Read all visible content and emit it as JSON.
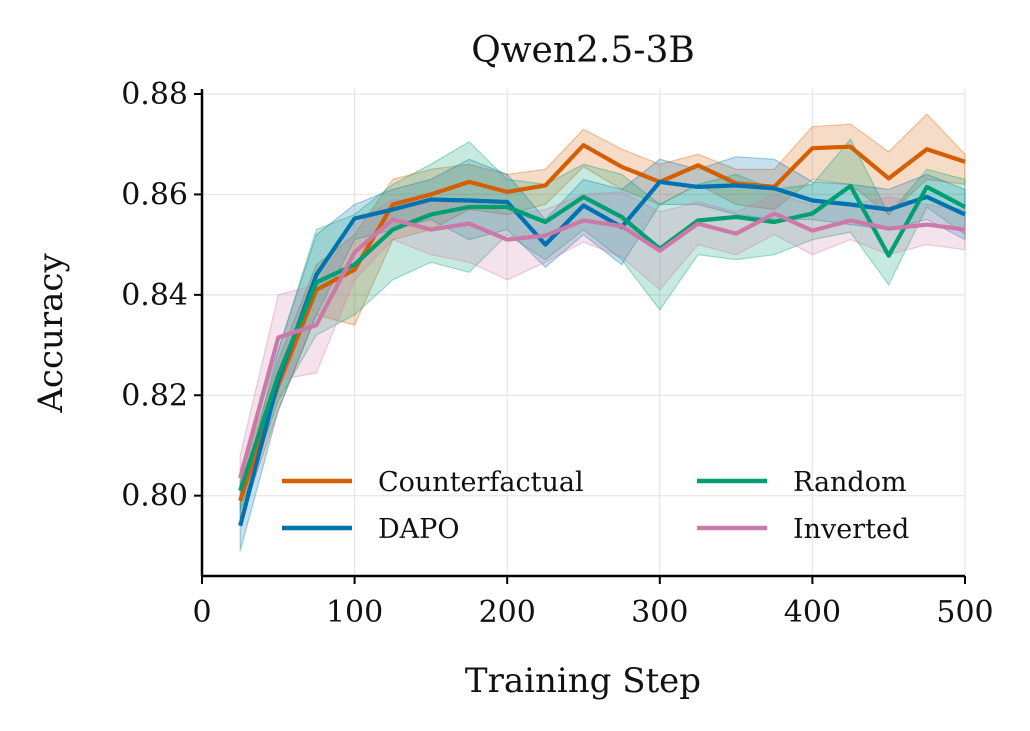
{
  "chart_data": {
    "type": "line",
    "title": "Qwen2.5-3B",
    "xlabel": "Training Step",
    "ylabel": "Accuracy",
    "xlim": [
      0,
      500
    ],
    "ylim": [
      0.784,
      0.881
    ],
    "xticks": [
      0,
      100,
      200,
      300,
      400,
      500
    ],
    "xtick_labels": [
      "0",
      "100",
      "200",
      "300",
      "400",
      "500"
    ],
    "yticks": [
      0.8,
      0.82,
      0.84,
      0.86,
      0.88
    ],
    "ytick_labels": [
      "0.80",
      "0.82",
      "0.84",
      "0.86",
      "0.88"
    ],
    "grid": true,
    "legend_position": "bottom-right",
    "legend_columns": 2,
    "x": [
      25,
      50,
      75,
      100,
      125,
      150,
      175,
      200,
      225,
      250,
      275,
      300,
      325,
      350,
      375,
      400,
      425,
      450,
      475,
      500
    ],
    "series": [
      {
        "name": "Counterfactual",
        "color": "#d55e00",
        "values": [
          0.799,
          0.822,
          0.841,
          0.845,
          0.858,
          0.86,
          0.8625,
          0.8605,
          0.8618,
          0.8698,
          0.8655,
          0.8625,
          0.8658,
          0.8622,
          0.8615,
          0.8692,
          0.8695,
          0.8632,
          0.869,
          0.8665
        ],
        "upper": [
          0.803,
          0.827,
          0.846,
          0.852,
          0.863,
          0.865,
          0.866,
          0.864,
          0.865,
          0.873,
          0.869,
          0.866,
          0.868,
          0.865,
          0.865,
          0.8735,
          0.874,
          0.8685,
          0.876,
          0.868
        ],
        "lower": [
          0.795,
          0.817,
          0.836,
          0.834,
          0.851,
          0.853,
          0.857,
          0.856,
          0.858,
          0.8655,
          0.861,
          0.858,
          0.862,
          0.858,
          0.857,
          0.863,
          0.862,
          0.856,
          0.863,
          0.862
        ]
      },
      {
        "name": "DAPO",
        "color": "#0072b2",
        "values": [
          0.794,
          0.823,
          0.844,
          0.8552,
          0.857,
          0.859,
          0.8588,
          0.8585,
          0.85,
          0.8578,
          0.8535,
          0.8625,
          0.8615,
          0.8618,
          0.8612,
          0.8588,
          0.858,
          0.857,
          0.8595,
          0.856
        ],
        "upper": [
          0.799,
          0.829,
          0.852,
          0.858,
          0.861,
          0.863,
          0.867,
          0.864,
          0.855,
          0.863,
          0.861,
          0.867,
          0.865,
          0.8675,
          0.867,
          0.8625,
          0.862,
          0.861,
          0.864,
          0.861
        ],
        "lower": [
          0.789,
          0.817,
          0.836,
          0.851,
          0.853,
          0.855,
          0.851,
          0.853,
          0.8455,
          0.852,
          0.846,
          0.858,
          0.858,
          0.856,
          0.855,
          0.855,
          0.854,
          0.853,
          0.855,
          0.851
        ]
      },
      {
        "name": "Random",
        "color": "#009e73",
        "values": [
          0.801,
          0.824,
          0.8425,
          0.846,
          0.853,
          0.856,
          0.8575,
          0.8575,
          0.8545,
          0.8595,
          0.8555,
          0.8492,
          0.8548,
          0.8555,
          0.8545,
          0.8562,
          0.8617,
          0.8478,
          0.8615,
          0.8575
        ],
        "upper": [
          0.805,
          0.829,
          0.853,
          0.856,
          0.862,
          0.866,
          0.8705,
          0.863,
          0.862,
          0.866,
          0.864,
          0.858,
          0.862,
          0.864,
          0.861,
          0.862,
          0.871,
          0.856,
          0.865,
          0.863
        ],
        "lower": [
          0.797,
          0.819,
          0.832,
          0.836,
          0.843,
          0.8465,
          0.8445,
          0.852,
          0.847,
          0.853,
          0.847,
          0.837,
          0.848,
          0.847,
          0.848,
          0.851,
          0.8525,
          0.842,
          0.8575,
          0.852
        ]
      },
      {
        "name": "Inverted",
        "color": "#cc79a7",
        "values": [
          0.8035,
          0.8315,
          0.834,
          0.8485,
          0.855,
          0.853,
          0.8542,
          0.851,
          0.8518,
          0.8548,
          0.8537,
          0.8488,
          0.8542,
          0.8522,
          0.8562,
          0.8528,
          0.8548,
          0.8532,
          0.854,
          0.853
        ],
        "upper": [
          0.808,
          0.84,
          0.842,
          0.854,
          0.859,
          0.858,
          0.859,
          0.856,
          0.857,
          0.86,
          0.8605,
          0.8565,
          0.8585,
          0.8565,
          0.86,
          0.858,
          0.858,
          0.8595,
          0.858,
          0.857
        ],
        "lower": [
          0.799,
          0.823,
          0.8245,
          0.843,
          0.851,
          0.848,
          0.8465,
          0.843,
          0.8465,
          0.8505,
          0.8475,
          0.841,
          0.85,
          0.848,
          0.852,
          0.848,
          0.851,
          0.848,
          0.85,
          0.849
        ]
      }
    ]
  }
}
